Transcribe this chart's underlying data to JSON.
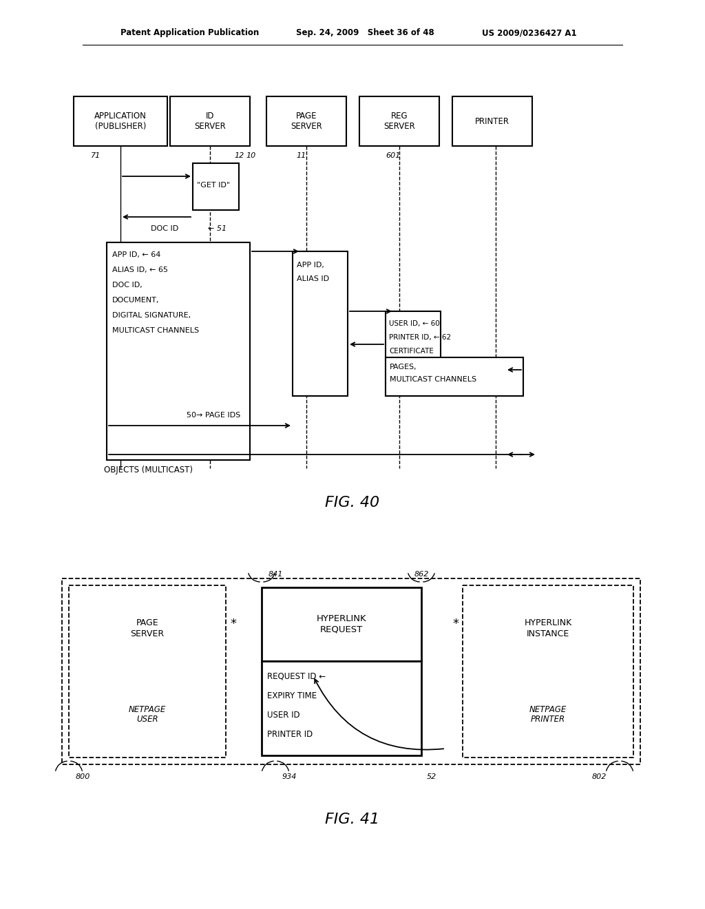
{
  "bg_color": "#ffffff",
  "header_text_left": "Patent Application Publication",
  "header_text_mid": "Sep. 24, 2009   Sheet 36 of 48",
  "header_text_right": "US 2009/0236427 A1",
  "fig40_title": "FIG. 40",
  "fig41_title": "FIG. 41"
}
